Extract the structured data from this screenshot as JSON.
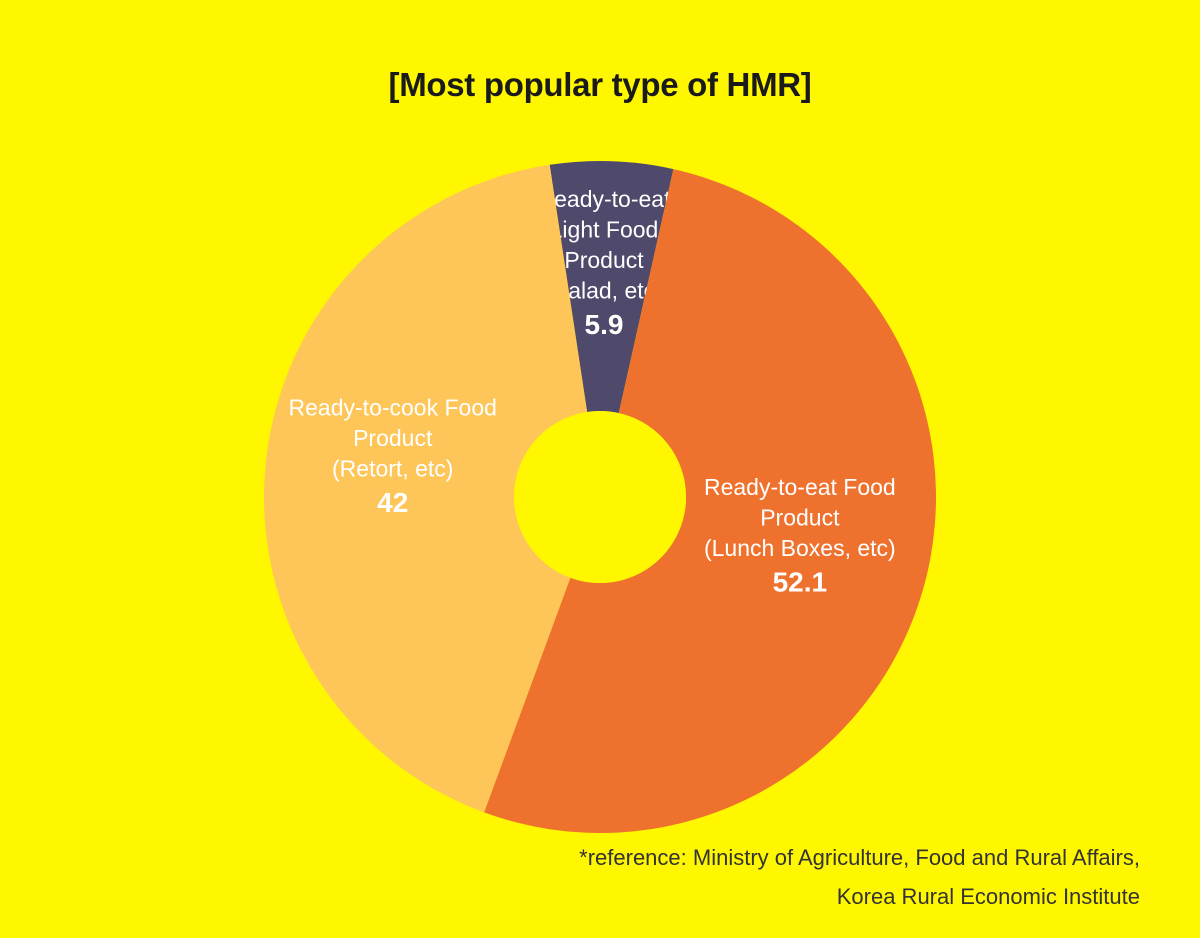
{
  "chart_data": {
    "type": "pie",
    "title": "[Most popular type of HMR]",
    "donut": true,
    "slices": [
      {
        "label_lines": [
          "Ready-to-eat",
          "Light Food",
          "Product",
          "(Salad, etc)"
        ],
        "value": 5.9,
        "value_text": "5.9",
        "color": "#4f4a6b"
      },
      {
        "label_lines": [
          "Ready-to-eat Food",
          "Product",
          "(Lunch Boxes, etc)"
        ],
        "value": 52.1,
        "value_text": "52.1",
        "color": "#ee722e"
      },
      {
        "label_lines": [
          "Ready-to-cook Food",
          "Product",
          "(Retort, etc)"
        ],
        "value": 42,
        "value_text": "42",
        "color": "#fec658"
      }
    ],
    "background_color": "#fff700",
    "legend": "none"
  },
  "reference": {
    "line1": "*reference: Ministry of Agriculture, Food and Rural Affairs,",
    "line2": "Korea Rural Economic Institute"
  }
}
